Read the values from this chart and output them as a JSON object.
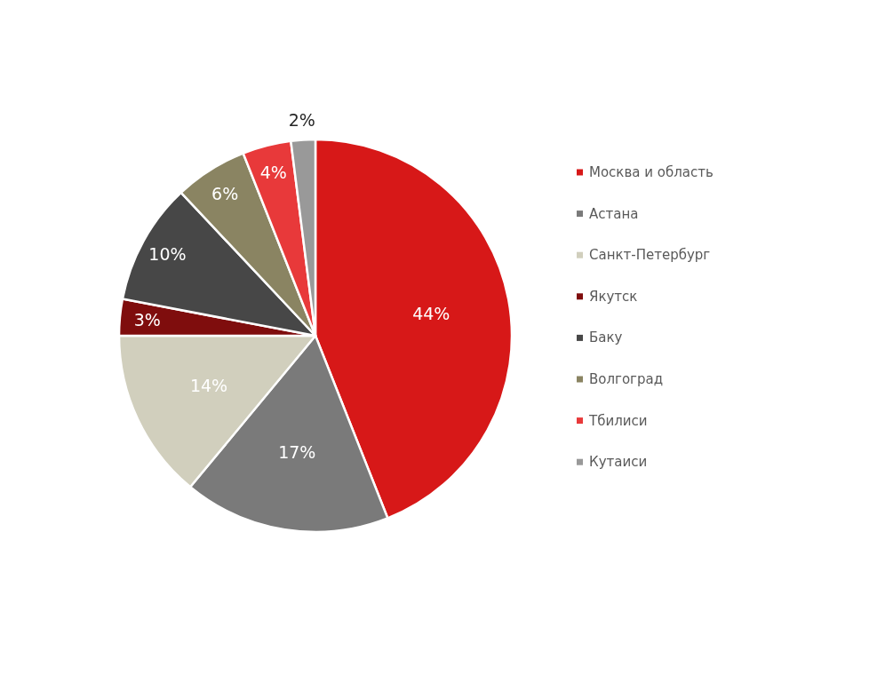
{
  "chart_data": {
    "type": "pie",
    "categories": [
      "Москва и область",
      "Астана",
      "Санкт-Петербург",
      "Якутск",
      "Баку",
      "Волгоград",
      "Тбилиси",
      "Кутаиси"
    ],
    "values": [
      44,
      17,
      14,
      3,
      10,
      6,
      4,
      2
    ],
    "colors": [
      "#d71818",
      "#7a7a7a",
      "#d1cfbd",
      "#7f0d0d",
      "#474747",
      "#8a8462",
      "#e8393a",
      "#999999"
    ],
    "value_labels": [
      "44%",
      "17%",
      "14%",
      "3%",
      "10%",
      "6%",
      "4%",
      "2%"
    ],
    "legend": "right"
  }
}
